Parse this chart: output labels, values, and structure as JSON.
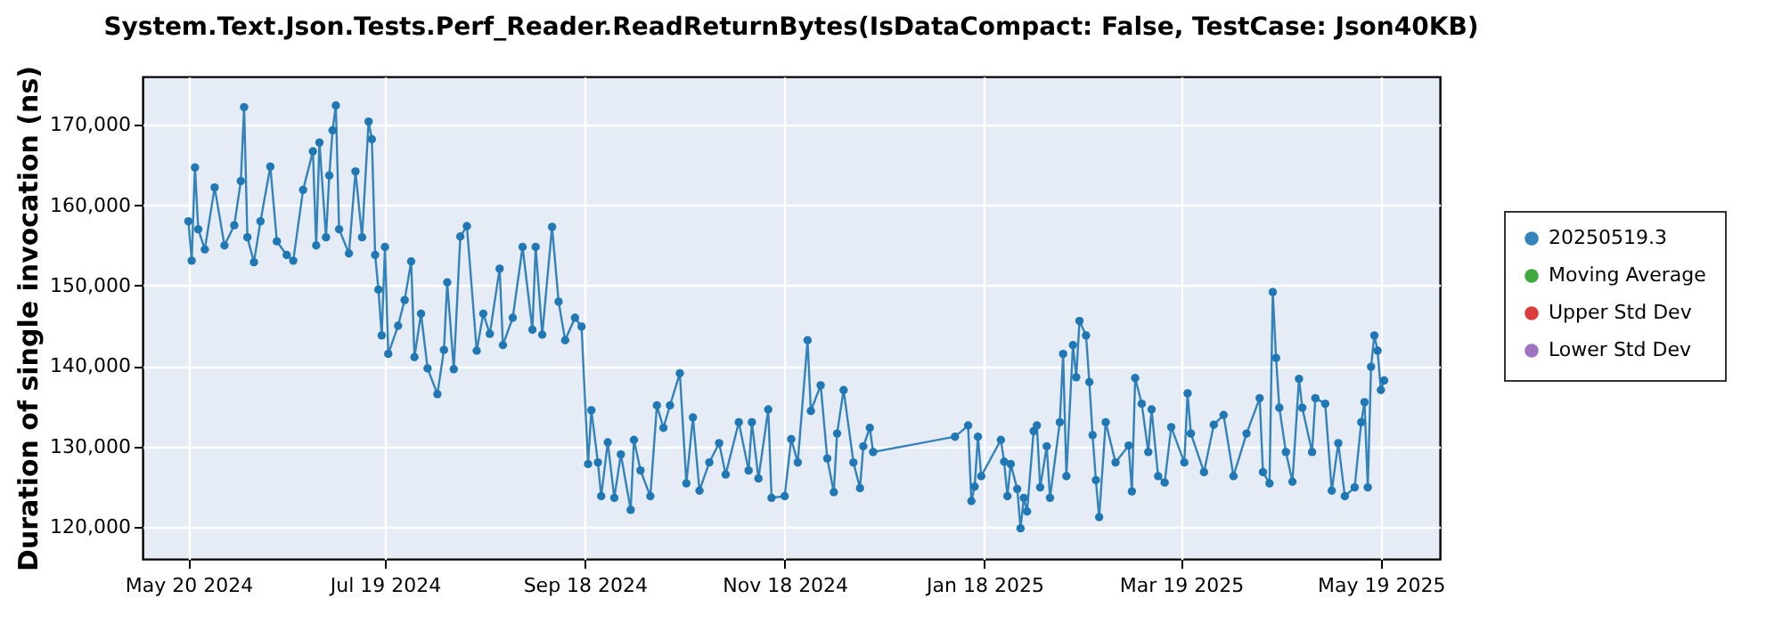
{
  "chart_data": {
    "type": "line",
    "title": "System.Text.Json.Tests.Perf_Reader.ReadReturnBytes(IsDataCompact: False, TestCase: Json40KB)",
    "ylabel": "Duration of single invocation (ns)",
    "xlim": [
      "2024-05-06",
      "2025-06-06"
    ],
    "xticks": [
      {
        "value": "2024-05-20",
        "label": "May 20 2024"
      },
      {
        "value": "2024-07-19",
        "label": "Jul 19 2024"
      },
      {
        "value": "2024-09-18",
        "label": "Sep 18 2024"
      },
      {
        "value": "2024-11-18",
        "label": "Nov 18 2024"
      },
      {
        "value": "2025-01-18",
        "label": "Jan 18 2025"
      },
      {
        "value": "2025-03-19",
        "label": "Mar 19 2025"
      },
      {
        "value": "2025-05-19",
        "label": "May 19 2025"
      }
    ],
    "ylim": [
      116000,
      176000
    ],
    "yticks": [
      {
        "value": 120000,
        "label": "120,000"
      },
      {
        "value": 130000,
        "label": "130,000"
      },
      {
        "value": 140000,
        "label": "140,000"
      },
      {
        "value": 150000,
        "label": "150,000"
      },
      {
        "value": 160000,
        "label": "160,000"
      },
      {
        "value": 170000,
        "label": "170,000"
      }
    ],
    "grid": true,
    "legend": "right",
    "marker": "circle",
    "line_style": "solid",
    "series": [
      {
        "name": "20250519.3",
        "color": "#1f77b4",
        "x": [
          "2024-05-20",
          "2024-05-21",
          "2024-05-22",
          "2024-05-23",
          "2024-05-25",
          "2024-05-28",
          "2024-05-31",
          "2024-06-03",
          "2024-06-05",
          "2024-06-06",
          "2024-06-07",
          "2024-06-09",
          "2024-06-11",
          "2024-06-14",
          "2024-06-16",
          "2024-06-19",
          "2024-06-21",
          "2024-06-24",
          "2024-06-27",
          "2024-06-28",
          "2024-06-29",
          "2024-07-01",
          "2024-07-02",
          "2024-07-03",
          "2024-07-04",
          "2024-07-05",
          "2024-07-08",
          "2024-07-10",
          "2024-07-12",
          "2024-07-14",
          "2024-07-15",
          "2024-07-16",
          "2024-07-17",
          "2024-07-18",
          "2024-07-19",
          "2024-07-20",
          "2024-07-23",
          "2024-07-25",
          "2024-07-27",
          "2024-07-28",
          "2024-07-30",
          "2024-08-01",
          "2024-08-04",
          "2024-08-06",
          "2024-08-07",
          "2024-08-09",
          "2024-08-11",
          "2024-08-13",
          "2024-08-16",
          "2024-08-18",
          "2024-08-20",
          "2024-08-23",
          "2024-08-24",
          "2024-08-27",
          "2024-08-30",
          "2024-09-02",
          "2024-09-03",
          "2024-09-05",
          "2024-09-08",
          "2024-09-10",
          "2024-09-12",
          "2024-09-15",
          "2024-09-17",
          "2024-09-19",
          "2024-09-20",
          "2024-09-22",
          "2024-09-23",
          "2024-09-25",
          "2024-09-27",
          "2024-09-29",
          "2024-10-02",
          "2024-10-03",
          "2024-10-05",
          "2024-10-08",
          "2024-10-10",
          "2024-10-12",
          "2024-10-14",
          "2024-10-17",
          "2024-10-19",
          "2024-10-21",
          "2024-10-23",
          "2024-10-26",
          "2024-10-29",
          "2024-10-31",
          "2024-11-04",
          "2024-11-07",
          "2024-11-08",
          "2024-11-10",
          "2024-11-13",
          "2024-11-14",
          "2024-11-18",
          "2024-11-20",
          "2024-11-22",
          "2024-11-25",
          "2024-11-26",
          "2024-11-29",
          "2024-12-01",
          "2024-12-03",
          "2024-12-04",
          "2024-12-06",
          "2024-12-09",
          "2024-12-11",
          "2024-12-12",
          "2024-12-14",
          "2024-12-15",
          "2025-01-09",
          "2025-01-13",
          "2025-01-14",
          "2025-01-15",
          "2025-01-16",
          "2025-01-17",
          "2025-01-23",
          "2025-01-24",
          "2025-01-25",
          "2025-01-26",
          "2025-01-28",
          "2025-01-29",
          "2025-01-30",
          "2025-01-31",
          "2025-02-02",
          "2025-02-03",
          "2025-02-04",
          "2025-02-06",
          "2025-02-07",
          "2025-02-10",
          "2025-02-11",
          "2025-02-12",
          "2025-02-14",
          "2025-02-15",
          "2025-02-16",
          "2025-02-18",
          "2025-02-19",
          "2025-02-20",
          "2025-02-21",
          "2025-02-22",
          "2025-02-24",
          "2025-02-27",
          "2025-03-03",
          "2025-03-04",
          "2025-03-05",
          "2025-03-07",
          "2025-03-09",
          "2025-03-10",
          "2025-03-12",
          "2025-03-14",
          "2025-03-16",
          "2025-03-20",
          "2025-03-21",
          "2025-03-22",
          "2025-03-26",
          "2025-03-29",
          "2025-04-01",
          "2025-04-04",
          "2025-04-08",
          "2025-04-12",
          "2025-04-13",
          "2025-04-15",
          "2025-04-16",
          "2025-04-17",
          "2025-04-18",
          "2025-04-20",
          "2025-04-22",
          "2025-04-24",
          "2025-04-25",
          "2025-04-28",
          "2025-04-29",
          "2025-05-02",
          "2025-05-04",
          "2025-05-06",
          "2025-05-08",
          "2025-05-11",
          "2025-05-13",
          "2025-05-14",
          "2025-05-15",
          "2025-05-16",
          "2025-05-17",
          "2025-05-18",
          "2025-05-19",
          "2025-05-20"
        ],
        "values": [
          158000,
          153100,
          164700,
          157000,
          154500,
          162200,
          155000,
          157500,
          163000,
          172200,
          156000,
          152900,
          158000,
          164800,
          155500,
          153800,
          153100,
          161900,
          166700,
          155000,
          167800,
          156000,
          163700,
          169300,
          172400,
          157000,
          154000,
          164200,
          156000,
          170400,
          168200,
          153800,
          149500,
          143800,
          154800,
          141500,
          145000,
          148200,
          153000,
          141100,
          146500,
          139700,
          136500,
          142000,
          150400,
          139600,
          156100,
          157400,
          141900,
          146500,
          144000,
          152100,
          142600,
          146000,
          154800,
          144500,
          154800,
          143900,
          157300,
          148000,
          143200,
          146000,
          144900,
          127800,
          134500,
          128000,
          123800,
          130500,
          123600,
          129000,
          122100,
          130800,
          127000,
          123800,
          135100,
          132300,
          135100,
          139100,
          125400,
          133600,
          124500,
          128000,
          130400,
          126500,
          133000,
          127000,
          133000,
          126000,
          134600,
          123600,
          123800,
          130900,
          128000,
          143200,
          134400,
          137600,
          128500,
          124300,
          131600,
          137000,
          128000,
          124800,
          130000,
          132300,
          129300,
          131200,
          132600,
          123200,
          125000,
          131200,
          126300,
          130800,
          128100,
          123800,
          127800,
          124700,
          119800,
          123600,
          121900,
          131900,
          132600,
          124900,
          130000,
          123600,
          133000,
          141500,
          126300,
          142600,
          138600,
          145600,
          143800,
          138000,
          131400,
          125800,
          121200,
          133000,
          128000,
          130100,
          124400,
          138500,
          135300,
          129300,
          134600,
          126300,
          125500,
          132400,
          128000,
          136600,
          131600,
          126800,
          132700,
          133900,
          126300,
          131600,
          136000,
          126800,
          125400,
          149200,
          141000,
          134800,
          129300,
          125600,
          138400,
          134800,
          129300,
          136000,
          135300,
          124500,
          130400,
          123800,
          124900,
          133000,
          135500,
          124900,
          139900,
          143800,
          141900,
          137000,
          138200
        ]
      },
      {
        "name": "Moving Average",
        "color": "#2ca02c"
      },
      {
        "name": "Upper Std Dev",
        "color": "#d62728"
      },
      {
        "name": "Lower Std Dev",
        "color": "#9467bd"
      }
    ]
  }
}
